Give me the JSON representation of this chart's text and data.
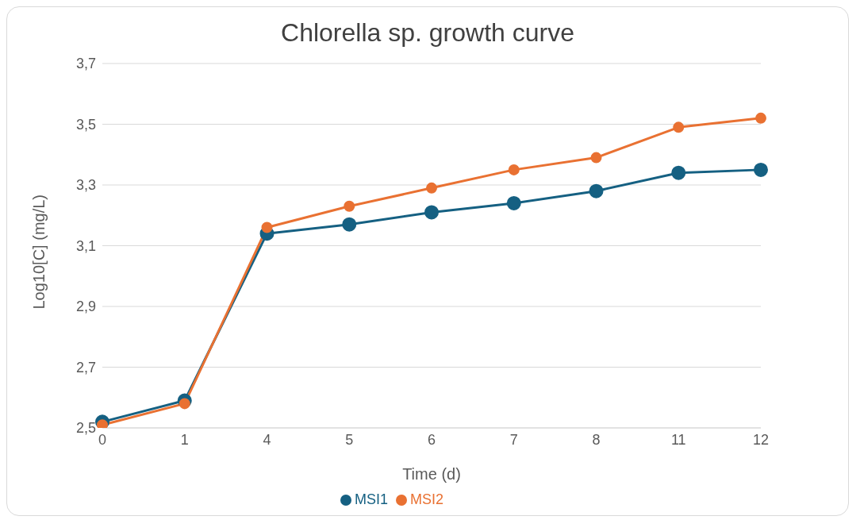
{
  "chart_data": {
    "type": "line",
    "title": "Chlorella sp. growth curve",
    "xlabel": "Time (d)",
    "ylabel": "Log10[C] (mg/L)",
    "categories": [
      "0",
      "1",
      "4",
      "5",
      "6",
      "7",
      "8",
      "11",
      "12"
    ],
    "series": [
      {
        "name": "MSI1",
        "color": "#156082",
        "values": [
          2.52,
          2.59,
          3.14,
          3.17,
          3.21,
          3.24,
          3.28,
          3.34,
          3.35
        ]
      },
      {
        "name": "MSI2",
        "color": "#e97132",
        "values": [
          2.51,
          2.58,
          3.16,
          3.23,
          3.29,
          3.35,
          3.39,
          3.49,
          3.52
        ]
      }
    ],
    "ylim": [
      2.5,
      3.7
    ],
    "yticks": [
      {
        "value": 2.5,
        "label": "2,5"
      },
      {
        "value": 2.7,
        "label": "2,7"
      },
      {
        "value": 2.9,
        "label": "2,9"
      },
      {
        "value": 3.1,
        "label": "3,1"
      },
      {
        "value": 3.3,
        "label": "3,3"
      },
      {
        "value": 3.5,
        "label": "3,5"
      },
      {
        "value": 3.7,
        "label": "3,7"
      }
    ],
    "grid": "y",
    "legend": "bottom",
    "marker": "circle",
    "line_style": "solid"
  }
}
